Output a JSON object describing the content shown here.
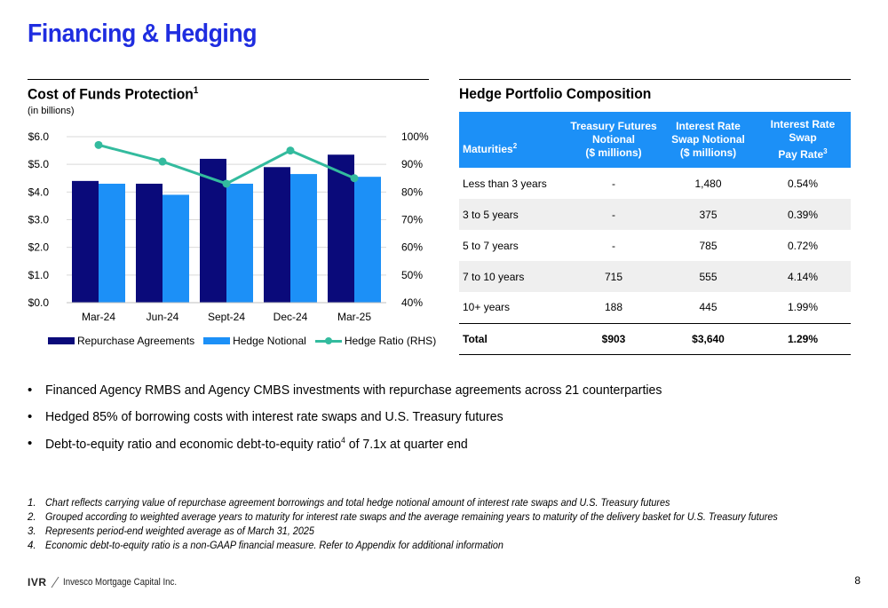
{
  "page": {
    "title": "Financing & Hedging",
    "page_number": "8"
  },
  "chart_section": {
    "title": "Cost of Funds Protection",
    "title_sup": "1",
    "subtitle": "(in billions)"
  },
  "chart_data": {
    "type": "bar",
    "title": "Cost of Funds Protection",
    "subtitle": "(in billions)",
    "categories": [
      "Mar-24",
      "Jun-24",
      "Sept-24",
      "Dec-24",
      "Mar-25"
    ],
    "series": [
      {
        "name": "Repurchase Agreements",
        "type": "bar",
        "axis": "left",
        "color": "#0a0a7a",
        "values": [
          4.4,
          4.3,
          5.2,
          4.9,
          5.35
        ]
      },
      {
        "name": "Hedge Notional",
        "type": "bar",
        "axis": "left",
        "color": "#1c90f7",
        "values": [
          4.3,
          3.9,
          4.3,
          4.65,
          4.55
        ]
      },
      {
        "name": "Hedge Ratio (RHS)",
        "type": "line",
        "axis": "right",
        "color": "#33bb9e",
        "values": [
          0.97,
          0.91,
          0.83,
          0.95,
          0.85
        ]
      }
    ],
    "y_left": {
      "min": 0,
      "max": 6,
      "ticks": [
        "$0.0",
        "$1.0",
        "$2.0",
        "$3.0",
        "$4.0",
        "$5.0",
        "$6.0"
      ]
    },
    "y_right": {
      "min": 0.4,
      "max": 1.0,
      "ticks": [
        "40%",
        "50%",
        "60%",
        "70%",
        "80%",
        "90%",
        "100%"
      ]
    },
    "grid": true,
    "legend_position": "bottom"
  },
  "table_section": {
    "title": "Hedge Portfolio Composition",
    "headers": [
      {
        "label": "Maturities",
        "sup": "2"
      },
      {
        "label": "Treasury Futures Notional ($ millions)",
        "line1": "Treasury Futures",
        "line2": "Notional",
        "line3": "($ millions)"
      },
      {
        "label": "Interest Rate Swap Notional ($ millions)",
        "line1": "Interest Rate",
        "line2": "Swap Notional",
        "line3": "($ millions)"
      },
      {
        "label": "Interest Rate Swap Pay Rate",
        "line1": "Interest Rate Swap",
        "line2": "Pay Rate",
        "sup": "3"
      }
    ],
    "rows": [
      {
        "maturity": "Less than 3 years",
        "futures": "-",
        "swap": "1,480",
        "rate": "0.54%"
      },
      {
        "maturity": "3 to 5 years",
        "futures": "-",
        "swap": "375",
        "rate": "0.39%"
      },
      {
        "maturity": "5 to 7 years",
        "futures": "-",
        "swap": "785",
        "rate": "0.72%"
      },
      {
        "maturity": "7 to 10 years",
        "futures": "715",
        "swap": "555",
        "rate": "4.14%"
      },
      {
        "maturity": "10+ years",
        "futures": "188",
        "swap": "445",
        "rate": "1.99%"
      }
    ],
    "total": {
      "maturity": "Total",
      "futures": "$903",
      "swap": "$3,640",
      "rate": "1.29%"
    }
  },
  "bullets": [
    {
      "text": "Financed Agency RMBS and Agency CMBS investments with repurchase agreements across 21 counterparties"
    },
    {
      "text": "Hedged 85% of borrowing costs with interest rate swaps and U.S. Treasury futures"
    },
    {
      "pre": "Debt-to-equity ratio and economic debt-to-equity ratio",
      "sup": "4",
      "post": " of 7.1x at quarter end"
    }
  ],
  "footnotes": [
    {
      "num": "1.",
      "text": "Chart reflects carrying value of repurchase agreement borrowings and total hedge notional amount of interest rate swaps and U.S. Treasury futures"
    },
    {
      "num": "2.",
      "text": "Grouped according to weighted average years to maturity for interest rate swaps and the average remaining years to maturity of the delivery basket for U.S. Treasury futures"
    },
    {
      "num": "3.",
      "text": "Represents period-end weighted average as of March 31, 2025"
    },
    {
      "num": "4.",
      "text": "Economic debt-to-equity ratio is a non-GAAP financial measure. Refer to Appendix for additional information"
    }
  ],
  "logo": {
    "mark": "IVR",
    "text": "Invesco Mortgage Capital Inc."
  }
}
